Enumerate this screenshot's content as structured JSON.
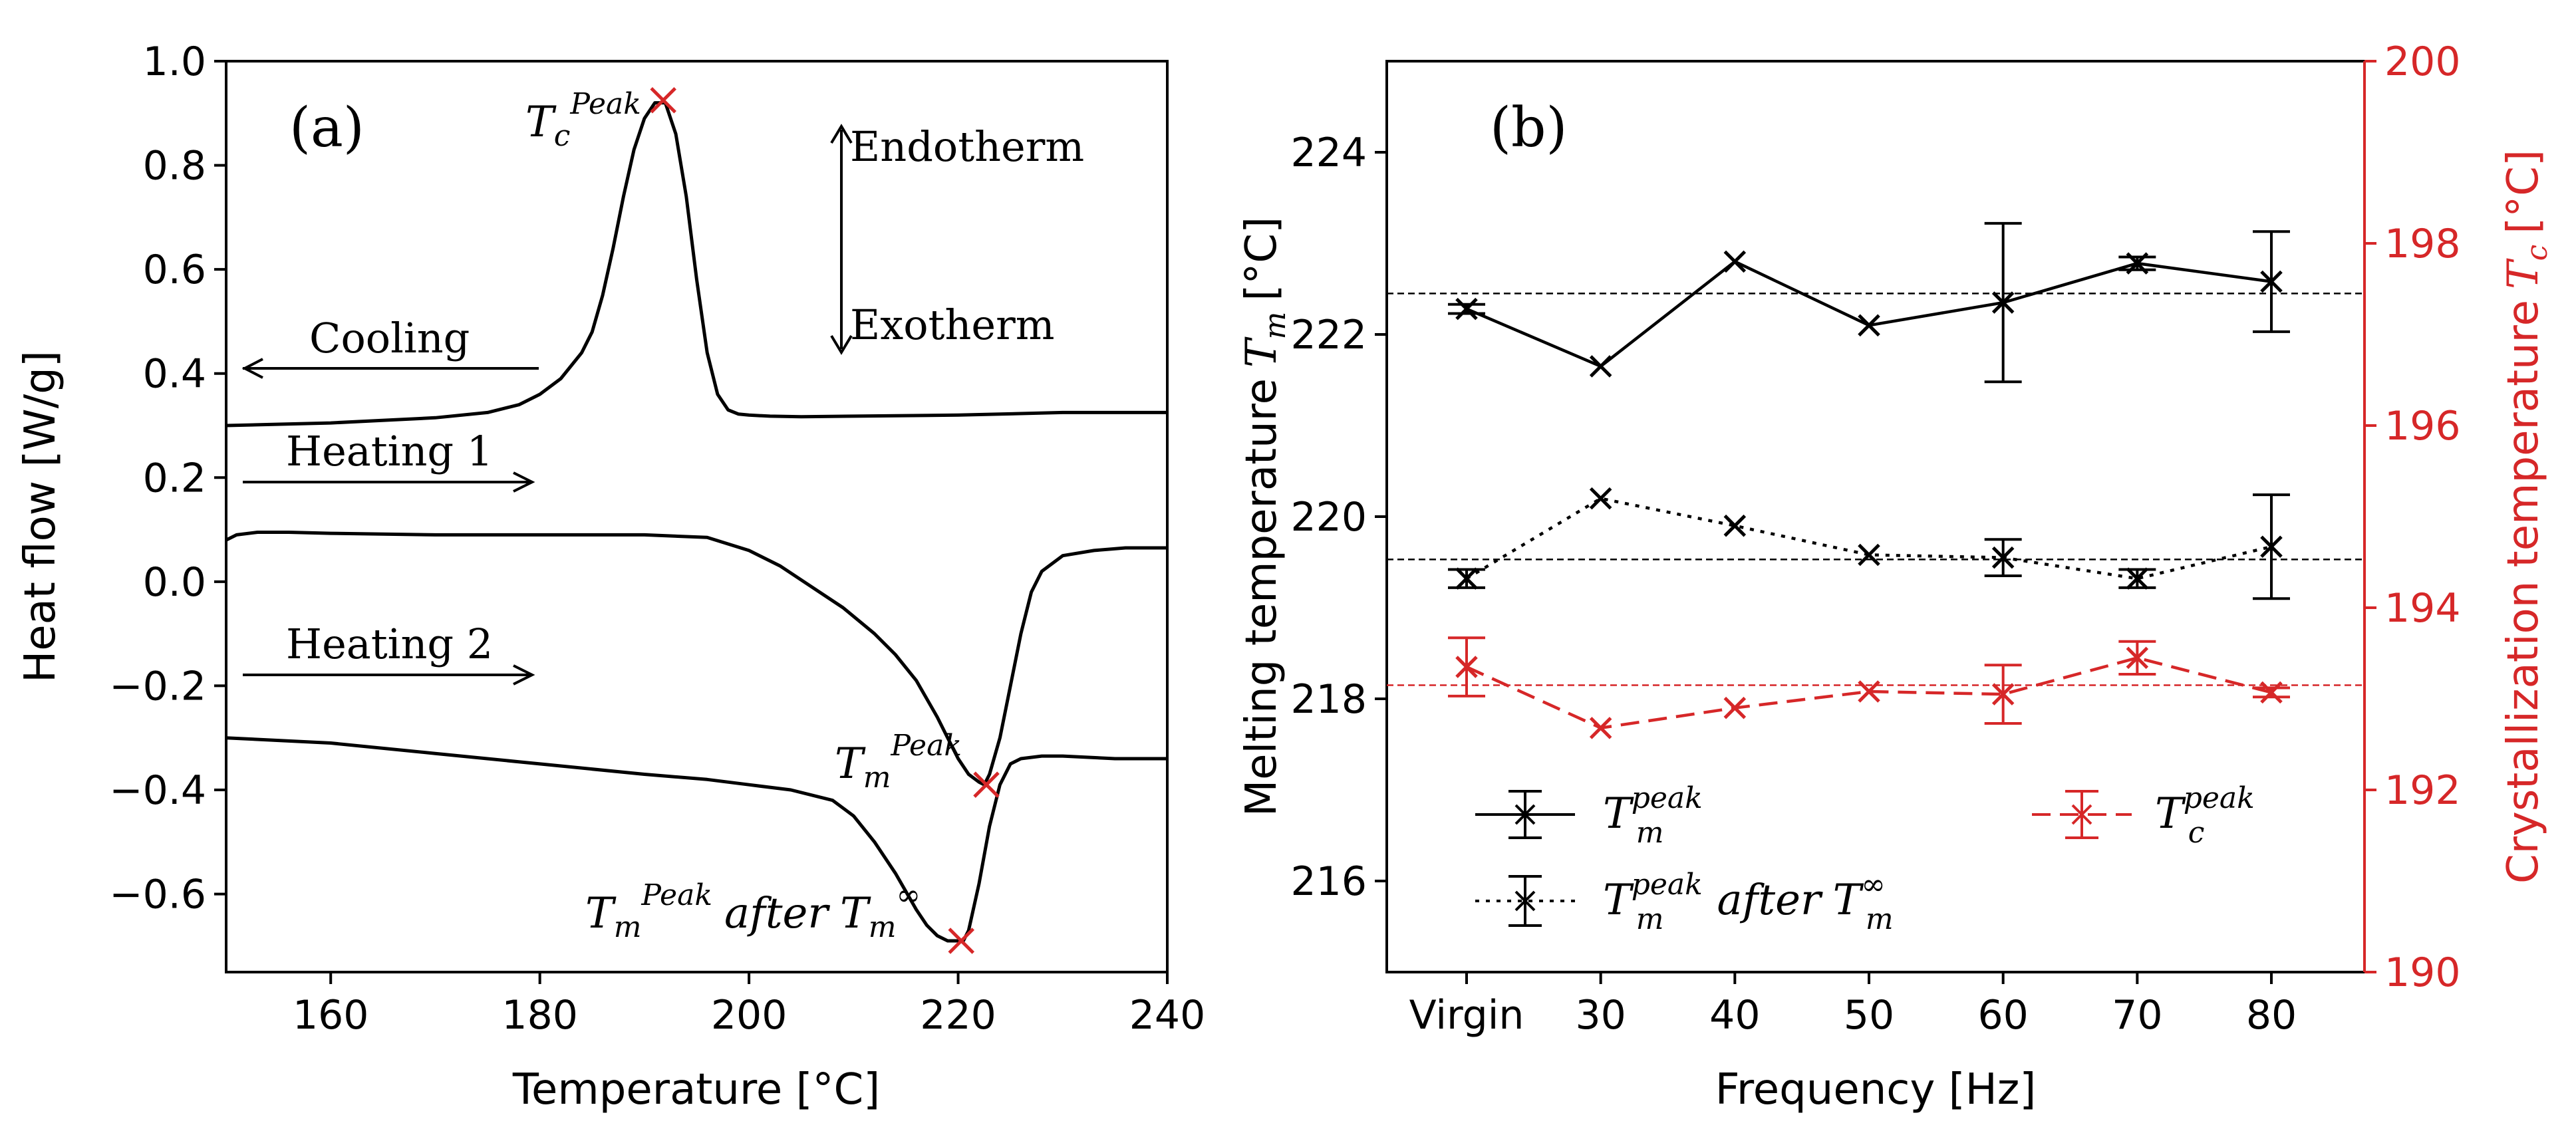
{
  "chart_data": [
    {
      "type": "line",
      "panel_label": "(a)",
      "xlabel": "Temperature [°C]",
      "ylabel": "Heat flow [W/g]",
      "xlim": [
        150,
        240
      ],
      "ylim": [
        -0.75,
        1.0
      ],
      "xticks": [
        160,
        180,
        200,
        220,
        240
      ],
      "yticks": [
        1.0,
        0.8,
        0.6,
        0.4,
        0.2,
        0.0,
        -0.2,
        -0.4,
        -0.6
      ],
      "ytick_labels": [
        "1.0",
        "0.8",
        "0.6",
        "0.4",
        "0.2",
        "0.0",
        "−0.2",
        "−0.4",
        "−0.6"
      ],
      "series": [
        {
          "name": "Cooling",
          "x": [
            150,
            160,
            170,
            175,
            178,
            180,
            182,
            184,
            185,
            186,
            187,
            188,
            189,
            190,
            191,
            192,
            193,
            194,
            195,
            196,
            197,
            198,
            199,
            200,
            202,
            205,
            210,
            220,
            230,
            240
          ],
          "y": [
            0.3,
            0.305,
            0.315,
            0.325,
            0.34,
            0.36,
            0.39,
            0.44,
            0.48,
            0.55,
            0.64,
            0.74,
            0.83,
            0.89,
            0.92,
            0.92,
            0.86,
            0.74,
            0.58,
            0.44,
            0.36,
            0.33,
            0.322,
            0.32,
            0.318,
            0.317,
            0.318,
            0.32,
            0.325,
            0.325
          ]
        },
        {
          "name": "Heating 1",
          "x": [
            150,
            151,
            153,
            156,
            160,
            170,
            180,
            190,
            196,
            200,
            203,
            206,
            209,
            212,
            214,
            216,
            218,
            219,
            220,
            221,
            222,
            222.5,
            223,
            224,
            225,
            226,
            227,
            228,
            230,
            233,
            236,
            240
          ],
          "y": [
            0.08,
            0.09,
            0.095,
            0.095,
            0.093,
            0.09,
            0.09,
            0.09,
            0.085,
            0.06,
            0.03,
            -0.01,
            -0.05,
            -0.1,
            -0.14,
            -0.19,
            -0.26,
            -0.3,
            -0.34,
            -0.37,
            -0.385,
            -0.39,
            -0.37,
            -0.3,
            -0.2,
            -0.1,
            -0.02,
            0.02,
            0.05,
            0.06,
            0.065,
            0.065
          ]
        },
        {
          "name": "Heating 2",
          "x": [
            150,
            160,
            170,
            180,
            190,
            196,
            200,
            204,
            208,
            210,
            212,
            214,
            216,
            217,
            218,
            219,
            220,
            220.5,
            221,
            222,
            223,
            224,
            225,
            226,
            228,
            230,
            235,
            240
          ],
          "y": [
            -0.3,
            -0.31,
            -0.33,
            -0.35,
            -0.37,
            -0.38,
            -0.39,
            -0.4,
            -0.42,
            -0.45,
            -0.5,
            -0.56,
            -0.63,
            -0.66,
            -0.68,
            -0.69,
            -0.69,
            -0.69,
            -0.67,
            -0.58,
            -0.47,
            -0.39,
            -0.35,
            -0.34,
            -0.335,
            -0.335,
            -0.34,
            -0.34
          ]
        }
      ],
      "markers": [
        {
          "x": 191.8,
          "y": 0.925,
          "color": "#d62728"
        },
        {
          "x": 222.7,
          "y": -0.39,
          "color": "#d62728"
        },
        {
          "x": 220.3,
          "y": -0.69,
          "color": "#d62728"
        }
      ],
      "annotations": {
        "tc_peak": {
          "symbol": "T",
          "sub": "c",
          "sup": "Peak"
        },
        "tm_peak": {
          "symbol": "T",
          "sub": "m",
          "sup": "Peak"
        },
        "tm_after": {
          "symbol": "T",
          "sub": "m",
          "sup": "Peak",
          "middle": "after",
          "symbol2": "T",
          "sub2": "m",
          "sup2": "∞"
        },
        "endotherm": "Endotherm",
        "exotherm": "Exotherm",
        "cooling": "Cooling",
        "heating1": "Heating 1",
        "heating2": "Heating 2"
      }
    },
    {
      "type": "line",
      "panel_label": "(b)",
      "xlabel": "Frequency [Hz]",
      "ylabel_left": "Melting temperature",
      "ylabel_left_sym": {
        "symbol": "T",
        "sub": "m",
        "unit": "[°C]"
      },
      "ylabel_right": "Crystallization temperature",
      "ylabel_right_sym": {
        "symbol": "T",
        "sub": "c",
        "unit": "[°C]"
      },
      "categories": [
        "Virgin",
        "30",
        "40",
        "50",
        "60",
        "70",
        "80"
      ],
      "ylim_left": [
        215,
        225
      ],
      "yticks_left": [
        216,
        218,
        220,
        222,
        224
      ],
      "ylim_right": [
        190,
        200
      ],
      "yticks_right": [
        190,
        192,
        194,
        196,
        198,
        200
      ],
      "series": [
        {
          "name": "T_m^peak",
          "axis": "left",
          "style": "solid",
          "color": "#000000",
          "values": [
            222.28,
            221.65,
            222.8,
            222.1,
            222.35,
            222.78,
            222.58
          ],
          "errors": [
            0.05,
            0.0,
            0.0,
            0.0,
            0.87,
            0.07,
            0.55
          ]
        },
        {
          "name": "T_m^peak after T_m^inf",
          "axis": "left",
          "style": "dotted",
          "color": "#000000",
          "values": [
            219.32,
            220.2,
            219.9,
            219.58,
            219.55,
            219.32,
            219.67
          ],
          "errors": [
            0.1,
            0.0,
            0.0,
            0.0,
            0.2,
            0.1,
            0.57
          ]
        },
        {
          "name": "T_c^peak",
          "axis": "right",
          "style": "dashed",
          "color": "#d62728",
          "values": [
            193.35,
            192.68,
            192.9,
            193.08,
            193.05,
            193.45,
            193.07
          ],
          "errors": [
            0.32,
            0.0,
            0.0,
            0.0,
            0.32,
            0.18,
            0.05
          ]
        }
      ],
      "reference_lines": [
        {
          "axis": "left",
          "value": 222.45,
          "color": "#000000"
        },
        {
          "axis": "left",
          "value": 219.53,
          "color": "#000000"
        },
        {
          "axis": "right",
          "value": 193.15,
          "color": "#d62728"
        }
      ],
      "legend": {
        "placement": "lower",
        "entries": [
          {
            "symbol": "T",
            "sup": "peak",
            "sub": "m",
            "extra": ""
          },
          {
            "symbol": "T",
            "sup": "peak",
            "sub": "m",
            "extra": "after",
            "symbol2": "T",
            "sup2": "∞",
            "sub2": "m"
          },
          {
            "symbol": "T",
            "sup": "peak",
            "sub": "c",
            "extra": ""
          }
        ]
      }
    }
  ]
}
